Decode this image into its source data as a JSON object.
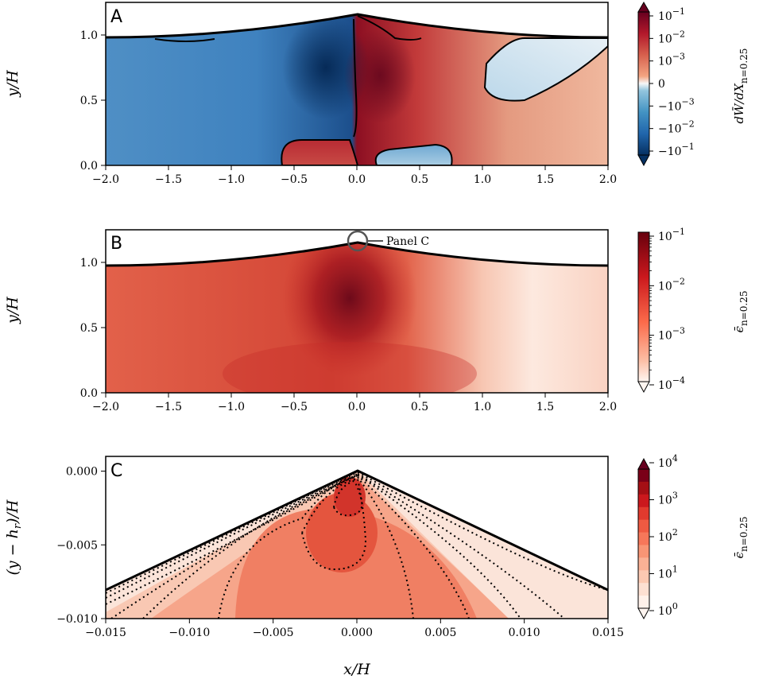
{
  "chart_data": [
    {
      "panel": "A",
      "type": "heatmap",
      "title": "",
      "xlabel": "",
      "ylabel": "y/H",
      "xlim": [
        -2.0,
        2.0
      ],
      "ylim": [
        0.0,
        1.25
      ],
      "xticks": [
        "−2.0",
        "−1.5",
        "−1.0",
        "−0.5",
        "0.0",
        "0.5",
        "1.0",
        "1.5",
        "2.0"
      ],
      "xtick_values": [
        -2.0,
        -1.5,
        -1.0,
        -0.5,
        0.0,
        0.5,
        1.0,
        1.5,
        2.0
      ],
      "yticks": [
        "0.0",
        "0.5",
        "1.0"
      ],
      "ytick_values": [
        0.0,
        0.5,
        1.0
      ],
      "colorbar": {
        "label": "dW̄/dX|n=0.25",
        "scale": "symlog",
        "ticks": [
          "10^-1",
          "10^-2",
          "10^-3",
          "0",
          "−10^-3",
          "−10^-2",
          "−10^-1"
        ],
        "extend": "both",
        "cmap": "RdBu_r"
      },
      "surface_peak": {
        "x": 0.0,
        "y": 1.17
      },
      "surface_far": {
        "x": 2.0,
        "y": 0.98
      }
    },
    {
      "panel": "B",
      "type": "heatmap",
      "xlabel": "",
      "ylabel": "y/H",
      "xlim": [
        -2.0,
        2.0
      ],
      "ylim": [
        0.0,
        1.25
      ],
      "xticks": [
        "−2.0",
        "−1.5",
        "−1.0",
        "−0.5",
        "0.0",
        "0.5",
        "1.0",
        "1.5",
        "2.0"
      ],
      "xtick_values": [
        -2.0,
        -1.5,
        -1.0,
        -0.5,
        0.0,
        0.5,
        1.0,
        1.5,
        2.0
      ],
      "yticks": [
        "0.0",
        "0.5",
        "1.0"
      ],
      "ytick_values": [
        0.0,
        0.5,
        1.0
      ],
      "annotation": {
        "text": "Panel C",
        "x": 0.0,
        "y": 1.17
      },
      "colorbar": {
        "label": "ϵ̄|n=0.25",
        "scale": "log",
        "ticks": [
          "10^-1",
          "10^-2",
          "10^-3",
          "10^-4"
        ],
        "extend": "min",
        "cmap": "Reds"
      }
    },
    {
      "panel": "C",
      "type": "heatmap",
      "xlabel": "x/H",
      "ylabel": "(y − h_r)/H",
      "xlim": [
        -0.015,
        0.015
      ],
      "ylim": [
        -0.01,
        0.001
      ],
      "xticks": [
        "−0.015",
        "−0.010",
        "−0.005",
        "0.000",
        "0.005",
        "0.010",
        "0.015"
      ],
      "xtick_values": [
        -0.015,
        -0.01,
        -0.005,
        0.0,
        0.005,
        0.01,
        0.015
      ],
      "yticks": [
        "0.000",
        "−0.005",
        "−0.010"
      ],
      "ytick_values": [
        0.0,
        -0.005,
        -0.01
      ],
      "colorbar": {
        "label": "ϵ̄|n=0.25",
        "scale": "log",
        "ticks": [
          "10^4",
          "10^3",
          "10^2",
          "10^1",
          "10^0"
        ],
        "extend": "both",
        "cmap": "Reds"
      }
    }
  ],
  "labels": {
    "panelA": "A",
    "panelB": "B",
    "panelC": "C",
    "ylabelA": "y/H",
    "ylabelB": "y/H",
    "ylabelC": "(y − h",
    "ylabelC_sub": "r",
    "ylabelC_end": ")/H",
    "xlabelC": "x/H",
    "annotationB": "Panel C",
    "cbA_label": "dW̄/dX",
    "cbA_sub": "n=0.25",
    "cbB_label": "ϵ̄",
    "cbB_sub": "n=0.25",
    "cbC_label": "ϵ̄",
    "cbC_sub": "n=0.25"
  },
  "colors": {
    "dark_red": "#67001f",
    "red": "#d6604d",
    "light_red": "#f4a582",
    "white": "#f7f7f7",
    "light_blue": "#92c5de",
    "blue": "#4393c3",
    "dark_blue": "#053061"
  }
}
